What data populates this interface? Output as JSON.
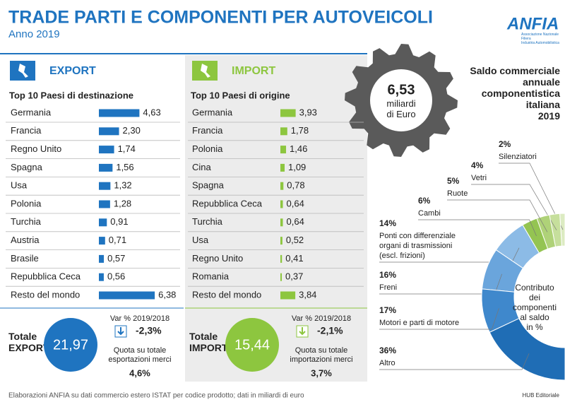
{
  "header": {
    "title": "TRADE PARTI E COMPONENTI PER AUTOVEICOLI",
    "subtitle": "Anno 2019",
    "logo": "ANFIA",
    "logo_sub": "Associazione Nazionale\nFiliera\nIndustria Automobilistica"
  },
  "chart_data": [
    {
      "type": "bar",
      "orientation": "horizontal",
      "title": "EXPORT",
      "subtitle": "Top 10 Paesi di destinazione",
      "color": "#1f74c0",
      "categories": [
        "Germania",
        "Francia",
        "Regno Unito",
        "Spagna",
        "Usa",
        "Polonia",
        "Turchia",
        "Austria",
        "Brasile",
        "Repubblica Ceca",
        "Resto del mondo"
      ],
      "values": [
        4.63,
        2.3,
        1.74,
        1.56,
        1.32,
        1.28,
        0.91,
        0.71,
        0.57,
        0.56,
        6.38
      ],
      "value_labels": [
        "4,63",
        "2,30",
        "1,74",
        "1,56",
        "1,32",
        "1,28",
        "0,91",
        "0,71",
        "0,57",
        "0,56",
        "6,38"
      ]
    },
    {
      "type": "bar",
      "orientation": "horizontal",
      "title": "IMPORT",
      "subtitle": "Top 10 Paesi di origine",
      "color": "#8dc63f",
      "categories": [
        "Germania",
        "Francia",
        "Polonia",
        "Cina",
        "Spagna",
        "Repubblica Ceca",
        "Turchia",
        "Usa",
        "Regno Unito",
        "Romania",
        "Resto del mondo"
      ],
      "values": [
        3.93,
        1.78,
        1.46,
        1.09,
        0.78,
        0.64,
        0.64,
        0.52,
        0.41,
        0.37,
        3.84
      ],
      "value_labels": [
        "3,93",
        "1,78",
        "1,46",
        "1,09",
        "0,78",
        "0,64",
        "0,64",
        "0,52",
        "0,41",
        "0,37",
        "3,84"
      ]
    },
    {
      "type": "pie",
      "title": "Contributo\ndei\ncomponenti\nal saldo\nin %",
      "categories": [
        "Silenziatori",
        "Vetri",
        "Ruote",
        "Cambi",
        "Ponti con differenziale\norgani di trasmissioni\n(escl. frizioni)",
        "Freni",
        "Motori e parti di motore",
        "Altro"
      ],
      "values": [
        2,
        4,
        5,
        6,
        14,
        16,
        17,
        36
      ],
      "value_labels": [
        "2%",
        "4%",
        "5%",
        "6%",
        "14%",
        "16%",
        "17%",
        "36%"
      ],
      "colors": [
        "#dcebc2",
        "#c6df9c",
        "#afd278",
        "#94c452",
        "#8cbbe6",
        "#6aa5dc",
        "#3f88cc",
        "#1f6db5"
      ]
    }
  ],
  "balance": {
    "value": "6,53",
    "unit": "miliardi\ndi Euro",
    "title": "Saldo commerciale\nannuale\ncomponentistica\nitaliana\n2019"
  },
  "export_totals": {
    "label": "Totale\nEXPORT",
    "total": "21,97",
    "var_label": "Var % 2019/2018",
    "var": "-2,3%",
    "share_label": "Quota su totale\nesportazioni merci",
    "share": "4,6%"
  },
  "import_totals": {
    "label": "Totale\nIMPORT",
    "total": "15,44",
    "var_label": "Var % 2019/2018",
    "var": "-2,1%",
    "share_label": "Quota su totale\nimportazioni merci",
    "share": "3,7%"
  },
  "footer": {
    "source": "Elaborazioni ANFIA su dati commercio estero ISTAT per codice prodotto; dati in miliardi di euro",
    "credit": "HUB Editoriale"
  }
}
